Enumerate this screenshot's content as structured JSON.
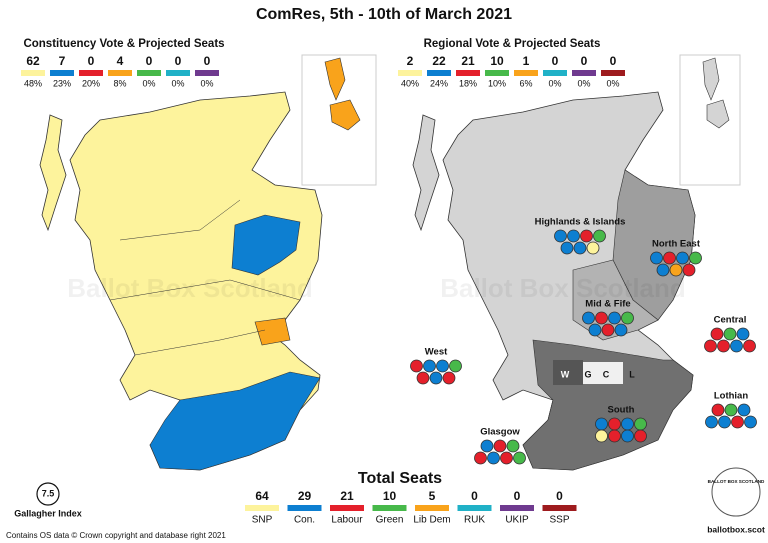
{
  "title": "ComRes, 5th - 10th of March 2021",
  "constituency": {
    "title": "Constituency Vote & Projected Seats",
    "parties": [
      {
        "seats": 62,
        "vote": "48%",
        "color": "#fdf39c"
      },
      {
        "seats": 7,
        "vote": "23%",
        "color": "#0d7fd1"
      },
      {
        "seats": 0,
        "vote": "20%",
        "color": "#e4202b"
      },
      {
        "seats": 4,
        "vote": "8%",
        "color": "#f9a31b"
      },
      {
        "seats": 0,
        "vote": "0%",
        "color": "#47b94a"
      },
      {
        "seats": 0,
        "vote": "0%",
        "color": "#20b1c7"
      },
      {
        "seats": 0,
        "vote": "0%",
        "color": "#6f3a8f"
      }
    ]
  },
  "regional": {
    "title": "Regional Vote & Projected Seats",
    "parties": [
      {
        "seats": 2,
        "vote": "40%",
        "color": "#fdf39c"
      },
      {
        "seats": 22,
        "vote": "24%",
        "color": "#0d7fd1"
      },
      {
        "seats": 21,
        "vote": "18%",
        "color": "#e4202b"
      },
      {
        "seats": 10,
        "vote": "10%",
        "color": "#47b94a"
      },
      {
        "seats": 1,
        "vote": "6%",
        "color": "#f9a31b"
      },
      {
        "seats": 0,
        "vote": "0%",
        "color": "#20b1c7"
      },
      {
        "seats": 0,
        "vote": "0%",
        "color": "#6f3a8f"
      },
      {
        "seats": 0,
        "vote": "0%",
        "color": "#9e1b1e"
      }
    ],
    "regions": [
      {
        "name": "Highlands & Islands",
        "seats": [
          [
            "#0d7fd1",
            "#0d7fd1",
            "#e4202b",
            "#47b94a"
          ],
          [
            "#0d7fd1",
            "#0d7fd1",
            "#fdf39c"
          ]
        ]
      },
      {
        "name": "North East",
        "seats": [
          [
            "#0d7fd1",
            "#e4202b",
            "#0d7fd1",
            "#47b94a"
          ],
          [
            "#0d7fd1",
            "#f9a31b",
            "#e4202b"
          ]
        ]
      },
      {
        "name": "Mid & Fife",
        "seats": [
          [
            "#0d7fd1",
            "#e4202b",
            "#0d7fd1",
            "#47b94a"
          ],
          [
            "#0d7fd1",
            "#e4202b",
            "#0d7fd1"
          ]
        ]
      },
      {
        "name": "Central",
        "seats": [
          [
            "#e4202b",
            "#47b94a",
            "#0d7fd1"
          ],
          [
            "#e4202b",
            "#e4202b",
            "#0d7fd1",
            "#e4202b"
          ]
        ]
      },
      {
        "name": "West",
        "seats": [
          [
            "#e4202b",
            "#0d7fd1",
            "#0d7fd1",
            "#47b94a"
          ],
          [
            "#e4202b",
            "#0d7fd1",
            "#e4202b"
          ]
        ]
      },
      {
        "name": "Lothian",
        "seats": [
          [
            "#e4202b",
            "#47b94a",
            "#0d7fd1"
          ],
          [
            "#0d7fd1",
            "#0d7fd1",
            "#e4202b",
            "#0d7fd1"
          ]
        ]
      },
      {
        "name": "South",
        "seats": [
          [
            "#0d7fd1",
            "#e4202b",
            "#0d7fd1",
            "#47b94a"
          ],
          [
            "#fdf39c",
            "#e4202b",
            "#0d7fd1",
            "#e4202b"
          ]
        ]
      },
      {
        "name": "Glasgow",
        "seats": [
          [
            "#0d7fd1",
            "#e4202b",
            "#47b94a"
          ],
          [
            "#e4202b",
            "#0d7fd1",
            "#e4202b",
            "#47b94a"
          ]
        ]
      }
    ],
    "map_letters": [
      "W",
      "G",
      "C",
      "L"
    ]
  },
  "total": {
    "title": "Total Seats",
    "parties": [
      {
        "name": "SNP",
        "seats": 64,
        "color": "#fdf39c"
      },
      {
        "name": "Con.",
        "seats": 29,
        "color": "#0d7fd1"
      },
      {
        "name": "Labour",
        "seats": 21,
        "color": "#e4202b"
      },
      {
        "name": "Green",
        "seats": 10,
        "color": "#47b94a"
      },
      {
        "name": "Lib Dem",
        "seats": 5,
        "color": "#f9a31b"
      },
      {
        "name": "RUK",
        "seats": 0,
        "color": "#20b1c7"
      },
      {
        "name": "UKIP",
        "seats": 0,
        "color": "#6f3a8f"
      },
      {
        "name": "SSP",
        "seats": 0,
        "color": "#9e1b1e"
      }
    ]
  },
  "gallagher": {
    "value": "7.5",
    "label": "Gallagher Index"
  },
  "footer": "Contains OS data © Crown copyright and database right 2021",
  "logo": {
    "ring": "BALLOT BOX SCOTLAND",
    "site": "ballotbox.scot"
  },
  "watermark": "Ballot Box Scotland"
}
